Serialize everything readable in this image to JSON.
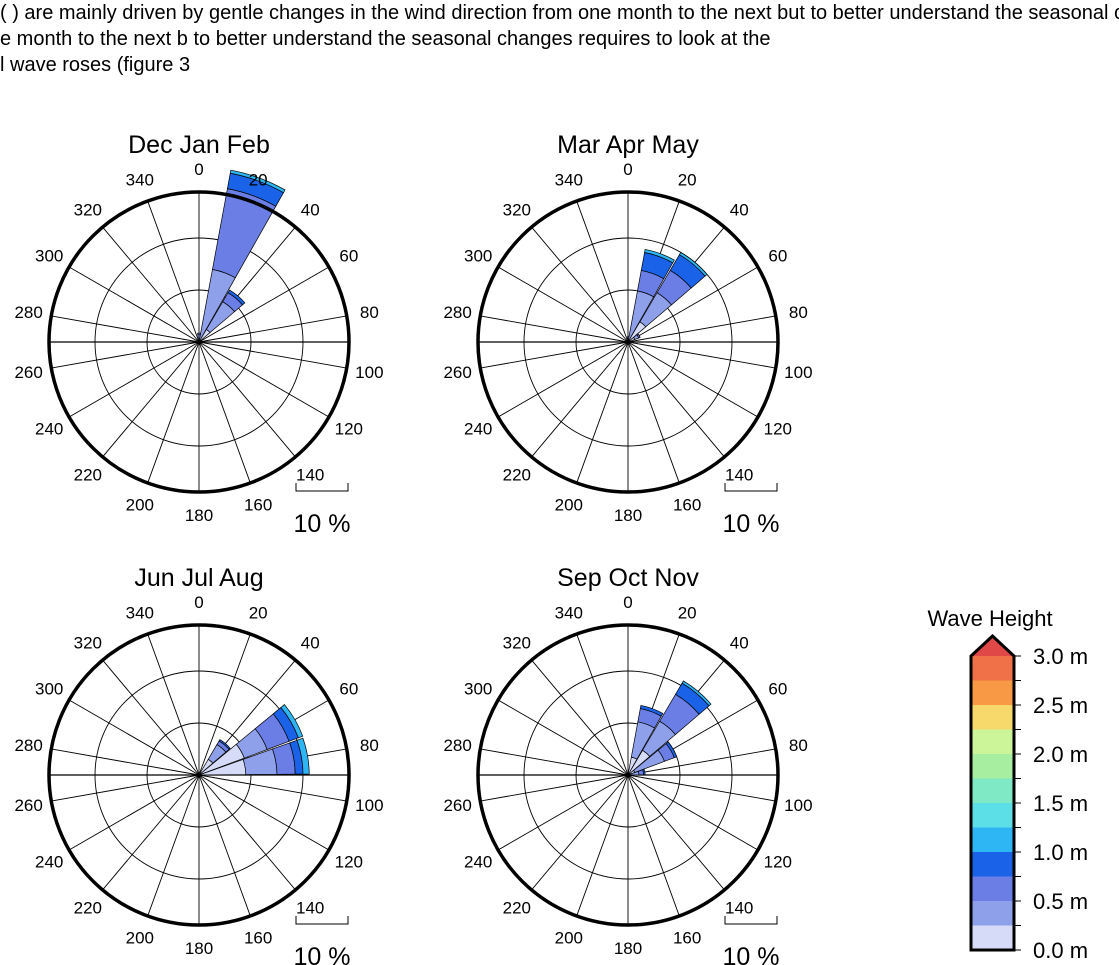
{
  "document": {
    "text_lines": [
      "(     ) are mainly driven by gentle changes in the wind direction from one month to the next but to better understand the seasonal changes requires to look at the seasonal",
      "e month to the next b    to better understand the seasonal changes requires to look at the",
      "l wave roses (figure 3"
    ]
  },
  "chart_data": {
    "type": "wave-rose",
    "scale_label": "10 %",
    "direction_labels": [
      "0",
      "20",
      "40",
      "60",
      "80",
      "100",
      "120",
      "140",
      "160",
      "180",
      "200",
      "220",
      "240",
      "260",
      "280",
      "300",
      "320",
      "340"
    ],
    "legend": {
      "title": "Wave Height",
      "unit": "m",
      "tick_labels": [
        "0.0 m",
        "0.5 m",
        "1.0 m",
        "1.5 m",
        "2.0 m",
        "2.5 m",
        "3.0 m"
      ],
      "bin_edges": [
        0.0,
        0.25,
        0.5,
        0.75,
        1.0,
        1.25,
        1.5,
        1.75,
        2.0,
        2.25,
        2.5,
        2.75,
        3.0
      ],
      "colors": [
        "#d6dcf7",
        "#8ea0ea",
        "#6a7ee6",
        "#1a63e8",
        "#2eb6f4",
        "#5ddfe8",
        "#7fe8c4",
        "#a8eea0",
        "#ccf59a",
        "#f7d86a",
        "#f89a45",
        "#f07048",
        "#e04848"
      ],
      "extend": "max"
    },
    "radial_max_percent": 26,
    "panels": [
      {
        "title": "Dec Jan Feb",
        "sectors": [
          {
            "direction": 0,
            "bins": [
              0.0,
              1.4,
              1.7
            ]
          },
          {
            "direction": 20,
            "bins": [
              0.0,
              14.2,
              30.0,
              33.0,
              33.6
            ]
          },
          {
            "direction": 40,
            "bins": [
              2.8,
              9.0,
              11.0,
              11.6
            ]
          }
        ]
      },
      {
        "title": "Mar Apr May",
        "sectors": [
          {
            "direction": 0,
            "bins": [
              0.0,
              0.7,
              1.0
            ]
          },
          {
            "direction": 20,
            "bins": [
              0.0,
              10.0,
              14.0,
              17.5,
              18.1
            ]
          },
          {
            "direction": 40,
            "bins": [
              4.5,
              11.0,
              16.0,
              19.5,
              20.0
            ]
          },
          {
            "direction": 60,
            "bins": [
              1.4,
              2.2,
              2.5
            ]
          }
        ]
      },
      {
        "title": "Jun Jul Aug",
        "sectors": [
          {
            "direction": 40,
            "bins": [
              3.5,
              6.8,
              7.6,
              7.9
            ]
          },
          {
            "direction": 60,
            "bins": [
              9.3,
              14.0,
              18.5,
              20.4,
              21.3
            ]
          },
          {
            "direction": 80,
            "bins": [
              9.0,
              15.0,
              18.5,
              20.0,
              21.2
            ]
          }
        ]
      },
      {
        "title": "Sep Oct Nov",
        "sectors": [
          {
            "direction": 20,
            "bins": [
              3.5,
              10.4,
              13.0,
              13.6
            ]
          },
          {
            "direction": 40,
            "bins": [
              5.5,
              12.0,
              18.0,
              20.5,
              21.0
            ]
          },
          {
            "direction": 60,
            "bins": [
              1.4,
              7.5,
              9.5,
              10.0
            ]
          },
          {
            "direction": 80,
            "bins": [
              0.6,
              2.1,
              3.0,
              3.3
            ]
          }
        ]
      }
    ]
  }
}
